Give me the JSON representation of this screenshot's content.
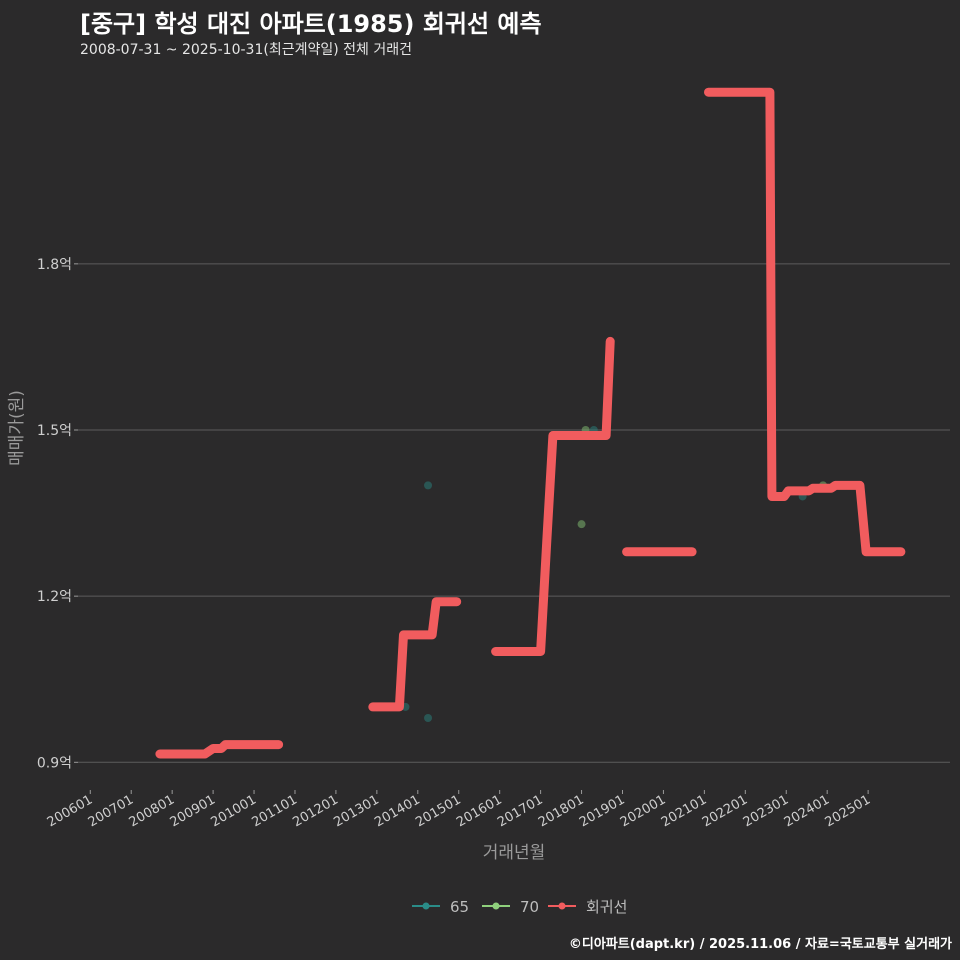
{
  "title": "[중구] 학성 대진 아파트(1985) 회귀선 예측",
  "subtitle": "2008-07-31 ~ 2025-10-31(최근계약일) 전체 거래건",
  "caption": "©디아파트(dapt.kr) / 2025.11.06 / 자료=국토교통부 실거래가",
  "colors": {
    "background": "#2b2a2b",
    "grid": "#5c5c5c",
    "series_65": "#2a8c88",
    "series_70": "#8fd07c",
    "regression": "#f15c5e"
  },
  "chart_data": {
    "type": "line",
    "xlabel": "거래년월",
    "ylabel": "매매가(원)",
    "x_range": [
      2005.7,
      2027.0
    ],
    "ylim": [
      0.85,
      2.15
    ],
    "y_ticks": [
      {
        "value": 0.9,
        "label": "0.9억"
      },
      {
        "value": 1.2,
        "label": "1.2억"
      },
      {
        "value": 1.5,
        "label": "1.5억"
      },
      {
        "value": 1.8,
        "label": "1.8억"
      }
    ],
    "x_ticks": [
      {
        "value": 2006.0,
        "label": "200601"
      },
      {
        "value": 2007.0,
        "label": "200701"
      },
      {
        "value": 2008.0,
        "label": "200801"
      },
      {
        "value": 2009.0,
        "label": "200901"
      },
      {
        "value": 2010.0,
        "label": "201001"
      },
      {
        "value": 2011.0,
        "label": "201101"
      },
      {
        "value": 2012.0,
        "label": "201201"
      },
      {
        "value": 2013.0,
        "label": "201301"
      },
      {
        "value": 2014.0,
        "label": "201401"
      },
      {
        "value": 2015.0,
        "label": "201501"
      },
      {
        "value": 2016.0,
        "label": "201601"
      },
      {
        "value": 2017.0,
        "label": "201701"
      },
      {
        "value": 2018.0,
        "label": "201801"
      },
      {
        "value": 2019.0,
        "label": "201901"
      },
      {
        "value": 2020.0,
        "label": "202001"
      },
      {
        "value": 2021.0,
        "label": "202101"
      },
      {
        "value": 2022.0,
        "label": "202201"
      },
      {
        "value": 2023.0,
        "label": "202301"
      },
      {
        "value": 2024.0,
        "label": "202401"
      },
      {
        "value": 2025.0,
        "label": "202501"
      }
    ],
    "series": [
      {
        "name": "65",
        "kind": "points",
        "points": [
          {
            "x": 2013.7,
            "y": 1.0
          },
          {
            "x": 2014.25,
            "y": 1.4
          },
          {
            "x": 2014.25,
            "y": 0.98
          },
          {
            "x": 2018.3,
            "y": 1.5
          },
          {
            "x": 2023.4,
            "y": 1.38
          }
        ]
      },
      {
        "name": "70",
        "kind": "points",
        "points": [
          {
            "x": 2018.0,
            "y": 1.33
          },
          {
            "x": 2018.1,
            "y": 1.5
          },
          {
            "x": 2023.9,
            "y": 1.4
          }
        ]
      },
      {
        "name": "회귀선",
        "kind": "line",
        "segments": [
          [
            [
              2007.7,
              0.915
            ],
            [
              2008.8,
              0.915
            ],
            [
              2009.0,
              0.925
            ],
            [
              2009.2,
              0.925
            ],
            [
              2009.3,
              0.932
            ],
            [
              2010.6,
              0.932
            ]
          ],
          [
            [
              2012.9,
              1.0
            ],
            [
              2013.55,
              1.0
            ],
            [
              2013.65,
              1.13
            ],
            [
              2014.35,
              1.13
            ],
            [
              2014.45,
              1.19
            ],
            [
              2014.95,
              1.19
            ]
          ],
          [
            [
              2015.9,
              1.1
            ],
            [
              2017.0,
              1.1
            ],
            [
              2017.15,
              1.3
            ],
            [
              2017.3,
              1.49
            ],
            [
              2018.6,
              1.49
            ],
            [
              2018.7,
              1.66
            ]
          ],
          [
            [
              2019.1,
              1.28
            ],
            [
              2019.7,
              1.28
            ],
            [
              2020.7,
              1.28
            ]
          ],
          [
            [
              2021.1,
              2.11
            ],
            [
              2021.7,
              2.11
            ],
            [
              2022.6,
              2.11
            ],
            [
              2022.65,
              1.38
            ],
            [
              2022.95,
              1.38
            ],
            [
              2023.05,
              1.39
            ],
            [
              2023.55,
              1.39
            ],
            [
              2023.65,
              1.395
            ],
            [
              2024.1,
              1.395
            ],
            [
              2024.2,
              1.4
            ],
            [
              2024.8,
              1.4
            ],
            [
              2024.95,
              1.28
            ],
            [
              2025.8,
              1.28
            ]
          ]
        ]
      }
    ],
    "legend": {
      "placement": "bottom",
      "entries": [
        "65",
        "70",
        "회귀선"
      ]
    }
  }
}
